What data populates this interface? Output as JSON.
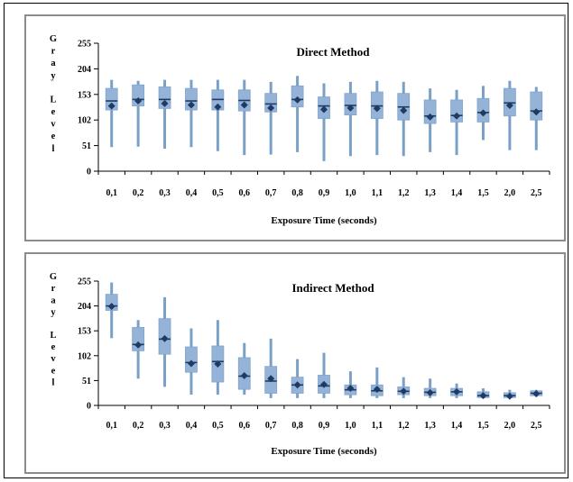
{
  "chart_data": [
    {
      "type": "box",
      "title": "Direct Method",
      "xlabel": "Exposure Time (seconds)",
      "ylabel": "Gray Level",
      "ylabel_letters": [
        "G",
        "r",
        "a",
        "y",
        "L",
        "e",
        "v",
        "e",
        "l"
      ],
      "ylim": [
        0,
        255
      ],
      "yticks": [
        "0",
        "51",
        "102",
        "153",
        "204",
        "255"
      ],
      "categories": [
        "0,1",
        "0,2",
        "0,3",
        "0,4",
        "0,5",
        "0,6",
        "0,7",
        "0,8",
        "0,9",
        "1,0",
        "1,1",
        "1,2",
        "1,3",
        "1,4",
        "1,5",
        "2,0",
        "2,5"
      ],
      "colors": {
        "box": "#95b3d7",
        "whisker": "#7aa0c8",
        "marker": "#1f3a64"
      },
      "series": [
        {
          "min": [
            48,
            49,
            45,
            48,
            40,
            32,
            33,
            38,
            20,
            30,
            32,
            30,
            38,
            32,
            62,
            42,
            42
          ],
          "q1": [
            122,
            130,
            125,
            122,
            122,
            120,
            118,
            128,
            105,
            112,
            105,
            102,
            95,
            98,
            98,
            110,
            102
          ],
          "median": [
            140,
            143,
            143,
            140,
            143,
            141,
            134,
            143,
            130,
            131,
            130,
            128,
            110,
            111,
            117,
            136,
            120
          ],
          "q3": [
            165,
            172,
            168,
            165,
            162,
            162,
            155,
            170,
            148,
            155,
            158,
            155,
            142,
            142,
            145,
            165,
            158
          ],
          "max": [
            182,
            180,
            182,
            182,
            182,
            182,
            178,
            190,
            175,
            178,
            180,
            178,
            165,
            162,
            170,
            180,
            168
          ],
          "mean": [
            130,
            140,
            135,
            132,
            128,
            132,
            126,
            142,
            123,
            126,
            125,
            121,
            108,
            110,
            116,
            131,
            118
          ]
        }
      ]
    },
    {
      "type": "box",
      "title": "Indirect Method",
      "xlabel": "Exposure Time (seconds)",
      "ylabel": "Gray Level",
      "ylabel_letters": [
        "G",
        "r",
        "a",
        "y",
        "L",
        "e",
        "v",
        "e",
        "l"
      ],
      "ylim": [
        0,
        255
      ],
      "yticks": [
        "0",
        "51",
        "102",
        "153",
        "204",
        "255"
      ],
      "categories": [
        "0,1",
        "0,2",
        "0,3",
        "0,4",
        "0,5",
        "0,6",
        "0,7",
        "0,8",
        "0,9",
        "1,0",
        "1,1",
        "1,2",
        "1,3",
        "1,4",
        "1,5",
        "2,0",
        "2,5"
      ],
      "colors": {
        "box": "#95b3d7",
        "whisker": "#7aa0c8",
        "marker": "#1f3a64"
      },
      "series": [
        {
          "min": [
            138,
            55,
            38,
            22,
            22,
            22,
            15,
            15,
            15,
            15,
            15,
            15,
            15,
            15,
            15,
            15,
            18
          ],
          "q1": [
            195,
            112,
            105,
            68,
            48,
            33,
            25,
            25,
            25,
            22,
            20,
            22,
            20,
            20,
            16,
            16,
            20
          ],
          "median": [
            204,
            125,
            136,
            88,
            90,
            60,
            50,
            42,
            40,
            32,
            30,
            29,
            27,
            28,
            20,
            20,
            25
          ],
          "q3": [
            228,
            160,
            178,
            120,
            122,
            98,
            80,
            58,
            62,
            42,
            42,
            38,
            35,
            35,
            28,
            26,
            30
          ],
          "max": [
            252,
            175,
            222,
            158,
            175,
            128,
            137,
            95,
            108,
            70,
            78,
            58,
            55,
            45,
            35,
            32,
            32
          ],
          "mean": [
            203,
            124,
            137,
            86,
            85,
            61,
            55,
            42,
            43,
            35,
            33,
            29,
            26,
            28,
            20,
            19,
            24
          ]
        }
      ]
    }
  ]
}
